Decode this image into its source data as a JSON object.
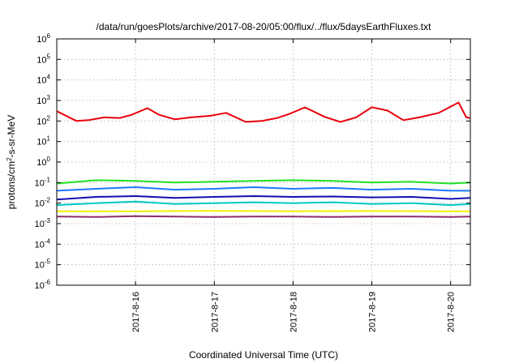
{
  "chart_data": {
    "type": "line",
    "title": "/data/run/goesPlots/archive/2017-08-20/05:00/flux/../flux/5daysEarthFluxes.txt",
    "xlabel": "Coordinated Universal Time (UTC)",
    "ylabel": "protons/cm²-s-sr-MeV",
    "ylabel_parts": {
      "pre": "protons/cm",
      "sup": "2",
      "post": "-s-sr-MeV"
    },
    "yscale": "log",
    "ylim_exp": [
      -6,
      6
    ],
    "ytick_exps": [
      "-6",
      "-5",
      "-4",
      "-3",
      "-2",
      "-1",
      "0",
      "1",
      "2",
      "3",
      "4",
      "5",
      "6"
    ],
    "ytick_base": "10",
    "xlim": [
      0,
      5.25
    ],
    "x_tick_positions": [
      1,
      2,
      3,
      4,
      5
    ],
    "x_tick_labels": [
      "2017-8-16",
      "2017-8-17",
      "2017-8-18",
      "2017-8-19",
      "2017-8-20"
    ],
    "grid": true,
    "series": [
      {
        "color": "#e8000b",
        "x": [
          0,
          0.25,
          0.4,
          0.6,
          0.8,
          0.95,
          1.15,
          1.3,
          1.5,
          1.7,
          1.95,
          2.15,
          2.4,
          2.6,
          2.8,
          2.95,
          3.15,
          3.4,
          3.6,
          3.8,
          4.0,
          4.2,
          4.4,
          4.6,
          4.85,
          5.0,
          5.1,
          5.2,
          5.25
        ],
        "y": [
          300,
          100,
          110,
          150,
          140,
          200,
          420,
          200,
          120,
          150,
          180,
          250,
          90,
          100,
          140,
          220,
          460,
          160,
          90,
          150,
          470,
          320,
          110,
          150,
          250,
          500,
          800,
          150,
          140
        ]
      },
      {
        "color": "#22e022",
        "x": [
          0,
          0.5,
          1.0,
          1.5,
          2.0,
          2.5,
          3.0,
          3.5,
          4.0,
          4.5,
          5.0,
          5.25
        ],
        "y": [
          0.09,
          0.13,
          0.12,
          0.1,
          0.11,
          0.12,
          0.13,
          0.12,
          0.1,
          0.11,
          0.09,
          0.1
        ]
      },
      {
        "color": "#1e78ff",
        "x": [
          0,
          0.5,
          1.0,
          1.5,
          2.0,
          2.5,
          3.0,
          3.5,
          4.0,
          4.5,
          5.0,
          5.25
        ],
        "y": [
          0.04,
          0.05,
          0.06,
          0.045,
          0.05,
          0.06,
          0.05,
          0.055,
          0.045,
          0.05,
          0.04,
          0.04
        ]
      },
      {
        "color": "#1010b0",
        "x": [
          0,
          0.5,
          1.0,
          1.5,
          2.0,
          2.5,
          3.0,
          3.5,
          4.0,
          4.5,
          5.0,
          5.25
        ],
        "y": [
          0.015,
          0.02,
          0.022,
          0.018,
          0.02,
          0.022,
          0.02,
          0.021,
          0.019,
          0.02,
          0.016,
          0.018
        ]
      },
      {
        "color": "#00c8c8",
        "x": [
          0,
          0.5,
          1.0,
          1.5,
          2.0,
          2.5,
          3.0,
          3.5,
          4.0,
          4.5,
          5.0,
          5.25
        ],
        "y": [
          0.008,
          0.01,
          0.012,
          0.009,
          0.01,
          0.011,
          0.01,
          0.011,
          0.009,
          0.01,
          0.008,
          0.009
        ]
      },
      {
        "color": "#f0f000",
        "x": [
          0,
          1,
          2,
          3,
          4,
          5,
          5.25
        ],
        "y": [
          0.004,
          0.004,
          0.0042,
          0.004,
          0.0041,
          0.004,
          0.004
        ]
      },
      {
        "color": "#8b2d6e",
        "x": [
          0,
          0.5,
          1.0,
          1.5,
          2.0,
          2.5,
          3.0,
          3.5,
          4.0,
          4.5,
          5.0,
          5.25
        ],
        "y": [
          0.0022,
          0.0021,
          0.0023,
          0.0022,
          0.0021,
          0.0022,
          0.0022,
          0.0021,
          0.0022,
          0.0022,
          0.0021,
          0.0022
        ]
      }
    ]
  }
}
